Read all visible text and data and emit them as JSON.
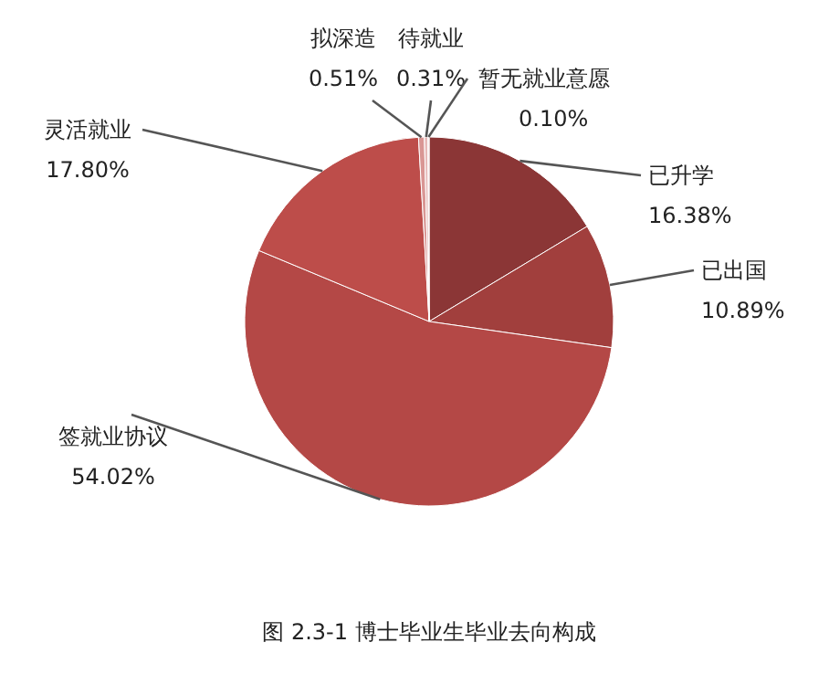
{
  "chart_data": {
    "type": "pie",
    "title": "图 2.3-1 博士毕业生毕业去向构成",
    "categories": [
      "已升学",
      "已出国",
      "签就业协议",
      "灵活就业",
      "拟深造",
      "待就业",
      "暂无就业意愿"
    ],
    "values": [
      16.38,
      10.89,
      54.02,
      17.8,
      0.51,
      0.31,
      0.1
    ],
    "colors": [
      "#8b3636",
      "#a13f3d",
      "#b44846",
      "#bd4d4a",
      "#d99694",
      "#e6b9b8",
      "#f2dcdb"
    ],
    "value_labels": [
      "16.38%",
      "10.89%",
      "54.02%",
      "17.80%",
      "0.51%",
      "0.31%",
      "0.10%"
    ]
  }
}
